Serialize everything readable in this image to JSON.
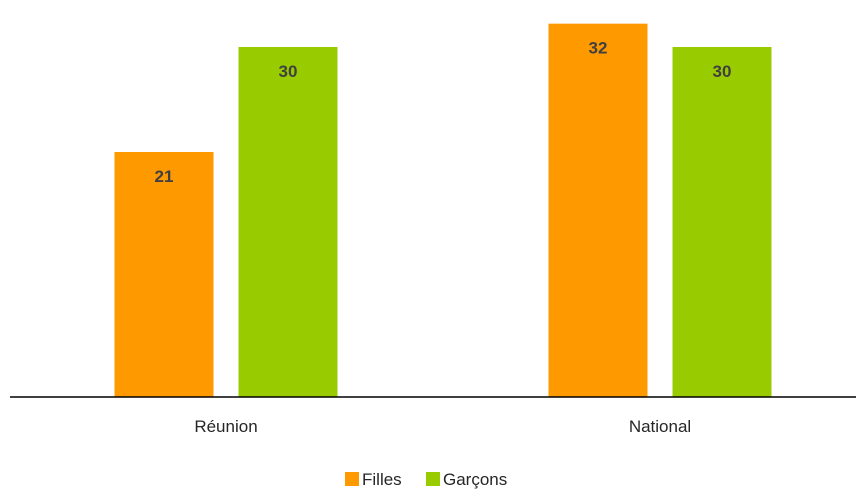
{
  "chart_data": {
    "type": "bar",
    "categories": [
      "Réunion",
      "National"
    ],
    "series": [
      {
        "name": "Filles",
        "values": [
          21,
          32
        ],
        "color": "#FF9900"
      },
      {
        "name": "Garçons",
        "values": [
          30,
          30
        ],
        "color": "#99CC00"
      }
    ],
    "ylim": [
      0,
      33
    ],
    "grid": false,
    "legend_position": "bottom",
    "show_data_labels": true
  }
}
